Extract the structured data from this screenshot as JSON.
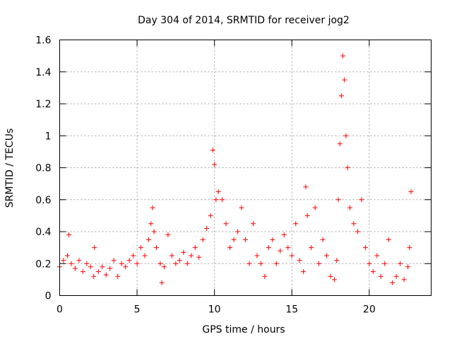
{
  "chart_data": {
    "type": "scatter",
    "title": "Day 304 of 2014, SRMTID for receiver jog2",
    "xlabel": "GPS time / hours",
    "ylabel": "SRMTID / TECUs",
    "xlim": [
      0,
      24
    ],
    "ylim": [
      0,
      1.6
    ],
    "xticks": [
      0,
      5,
      10,
      15,
      20
    ],
    "yticks": [
      0,
      0.2,
      0.4,
      0.6,
      0.8,
      1,
      1.2,
      1.4,
      1.6
    ],
    "xtick_labels": [
      "0",
      "5",
      "10",
      "15",
      "20"
    ],
    "ytick_labels": [
      "0",
      "0.2",
      "0.4",
      "0.6",
      "0.8",
      "1",
      "1.2",
      "1.4",
      "1.6"
    ],
    "grid": true,
    "marker": "+",
    "color": "#ff0000",
    "series": [
      {
        "name": "jog2",
        "x": [
          0.0,
          0.25,
          0.5,
          0.6,
          0.75,
          1.0,
          1.25,
          1.5,
          1.75,
          2.0,
          2.2,
          2.25,
          2.5,
          2.75,
          3.0,
          3.25,
          3.5,
          3.75,
          4.0,
          4.25,
          4.5,
          4.75,
          5.0,
          5.25,
          5.5,
          5.75,
          5.9,
          6.0,
          6.1,
          6.25,
          6.5,
          6.6,
          6.75,
          7.0,
          7.25,
          7.5,
          7.75,
          8.0,
          8.25,
          8.5,
          8.75,
          9.0,
          9.25,
          9.5,
          9.75,
          9.9,
          10.0,
          10.1,
          10.25,
          10.5,
          10.75,
          11.0,
          11.25,
          11.5,
          11.75,
          12.0,
          12.25,
          12.5,
          12.75,
          13.0,
          13.25,
          13.5,
          13.75,
          14.0,
          14.25,
          14.5,
          14.75,
          15.0,
          15.25,
          15.5,
          15.75,
          15.9,
          16.0,
          16.25,
          16.5,
          16.75,
          17.0,
          17.25,
          17.5,
          17.75,
          17.9,
          18.0,
          18.1,
          18.2,
          18.3,
          18.4,
          18.5,
          18.6,
          18.75,
          19.0,
          19.25,
          19.5,
          19.75,
          20.0,
          20.25,
          20.5,
          20.75,
          21.0,
          21.25,
          21.5,
          21.75,
          22.0,
          22.25,
          22.5,
          22.6,
          22.7
        ],
        "y": [
          0.18,
          0.22,
          0.25,
          0.38,
          0.2,
          0.17,
          0.22,
          0.15,
          0.2,
          0.18,
          0.12,
          0.3,
          0.15,
          0.18,
          0.13,
          0.17,
          0.22,
          0.12,
          0.2,
          0.18,
          0.22,
          0.25,
          0.2,
          0.3,
          0.25,
          0.35,
          0.45,
          0.55,
          0.4,
          0.3,
          0.2,
          0.08,
          0.18,
          0.38,
          0.25,
          0.2,
          0.22,
          0.27,
          0.2,
          0.25,
          0.3,
          0.24,
          0.35,
          0.42,
          0.5,
          0.91,
          0.82,
          0.6,
          0.65,
          0.6,
          0.45,
          0.3,
          0.35,
          0.4,
          0.55,
          0.35,
          0.2,
          0.45,
          0.25,
          0.2,
          0.12,
          0.3,
          0.35,
          0.2,
          0.28,
          0.38,
          0.3,
          0.25,
          0.45,
          0.22,
          0.15,
          0.68,
          0.5,
          0.3,
          0.55,
          0.2,
          0.35,
          0.25,
          0.12,
          0.1,
          0.22,
          0.6,
          0.95,
          1.25,
          1.5,
          1.35,
          1.0,
          0.8,
          0.55,
          0.45,
          0.4,
          0.6,
          0.3,
          0.2,
          0.15,
          0.25,
          0.12,
          0.2,
          0.35,
          0.08,
          0.12,
          0.2,
          0.1,
          0.18,
          0.3,
          0.65
        ]
      }
    ]
  }
}
